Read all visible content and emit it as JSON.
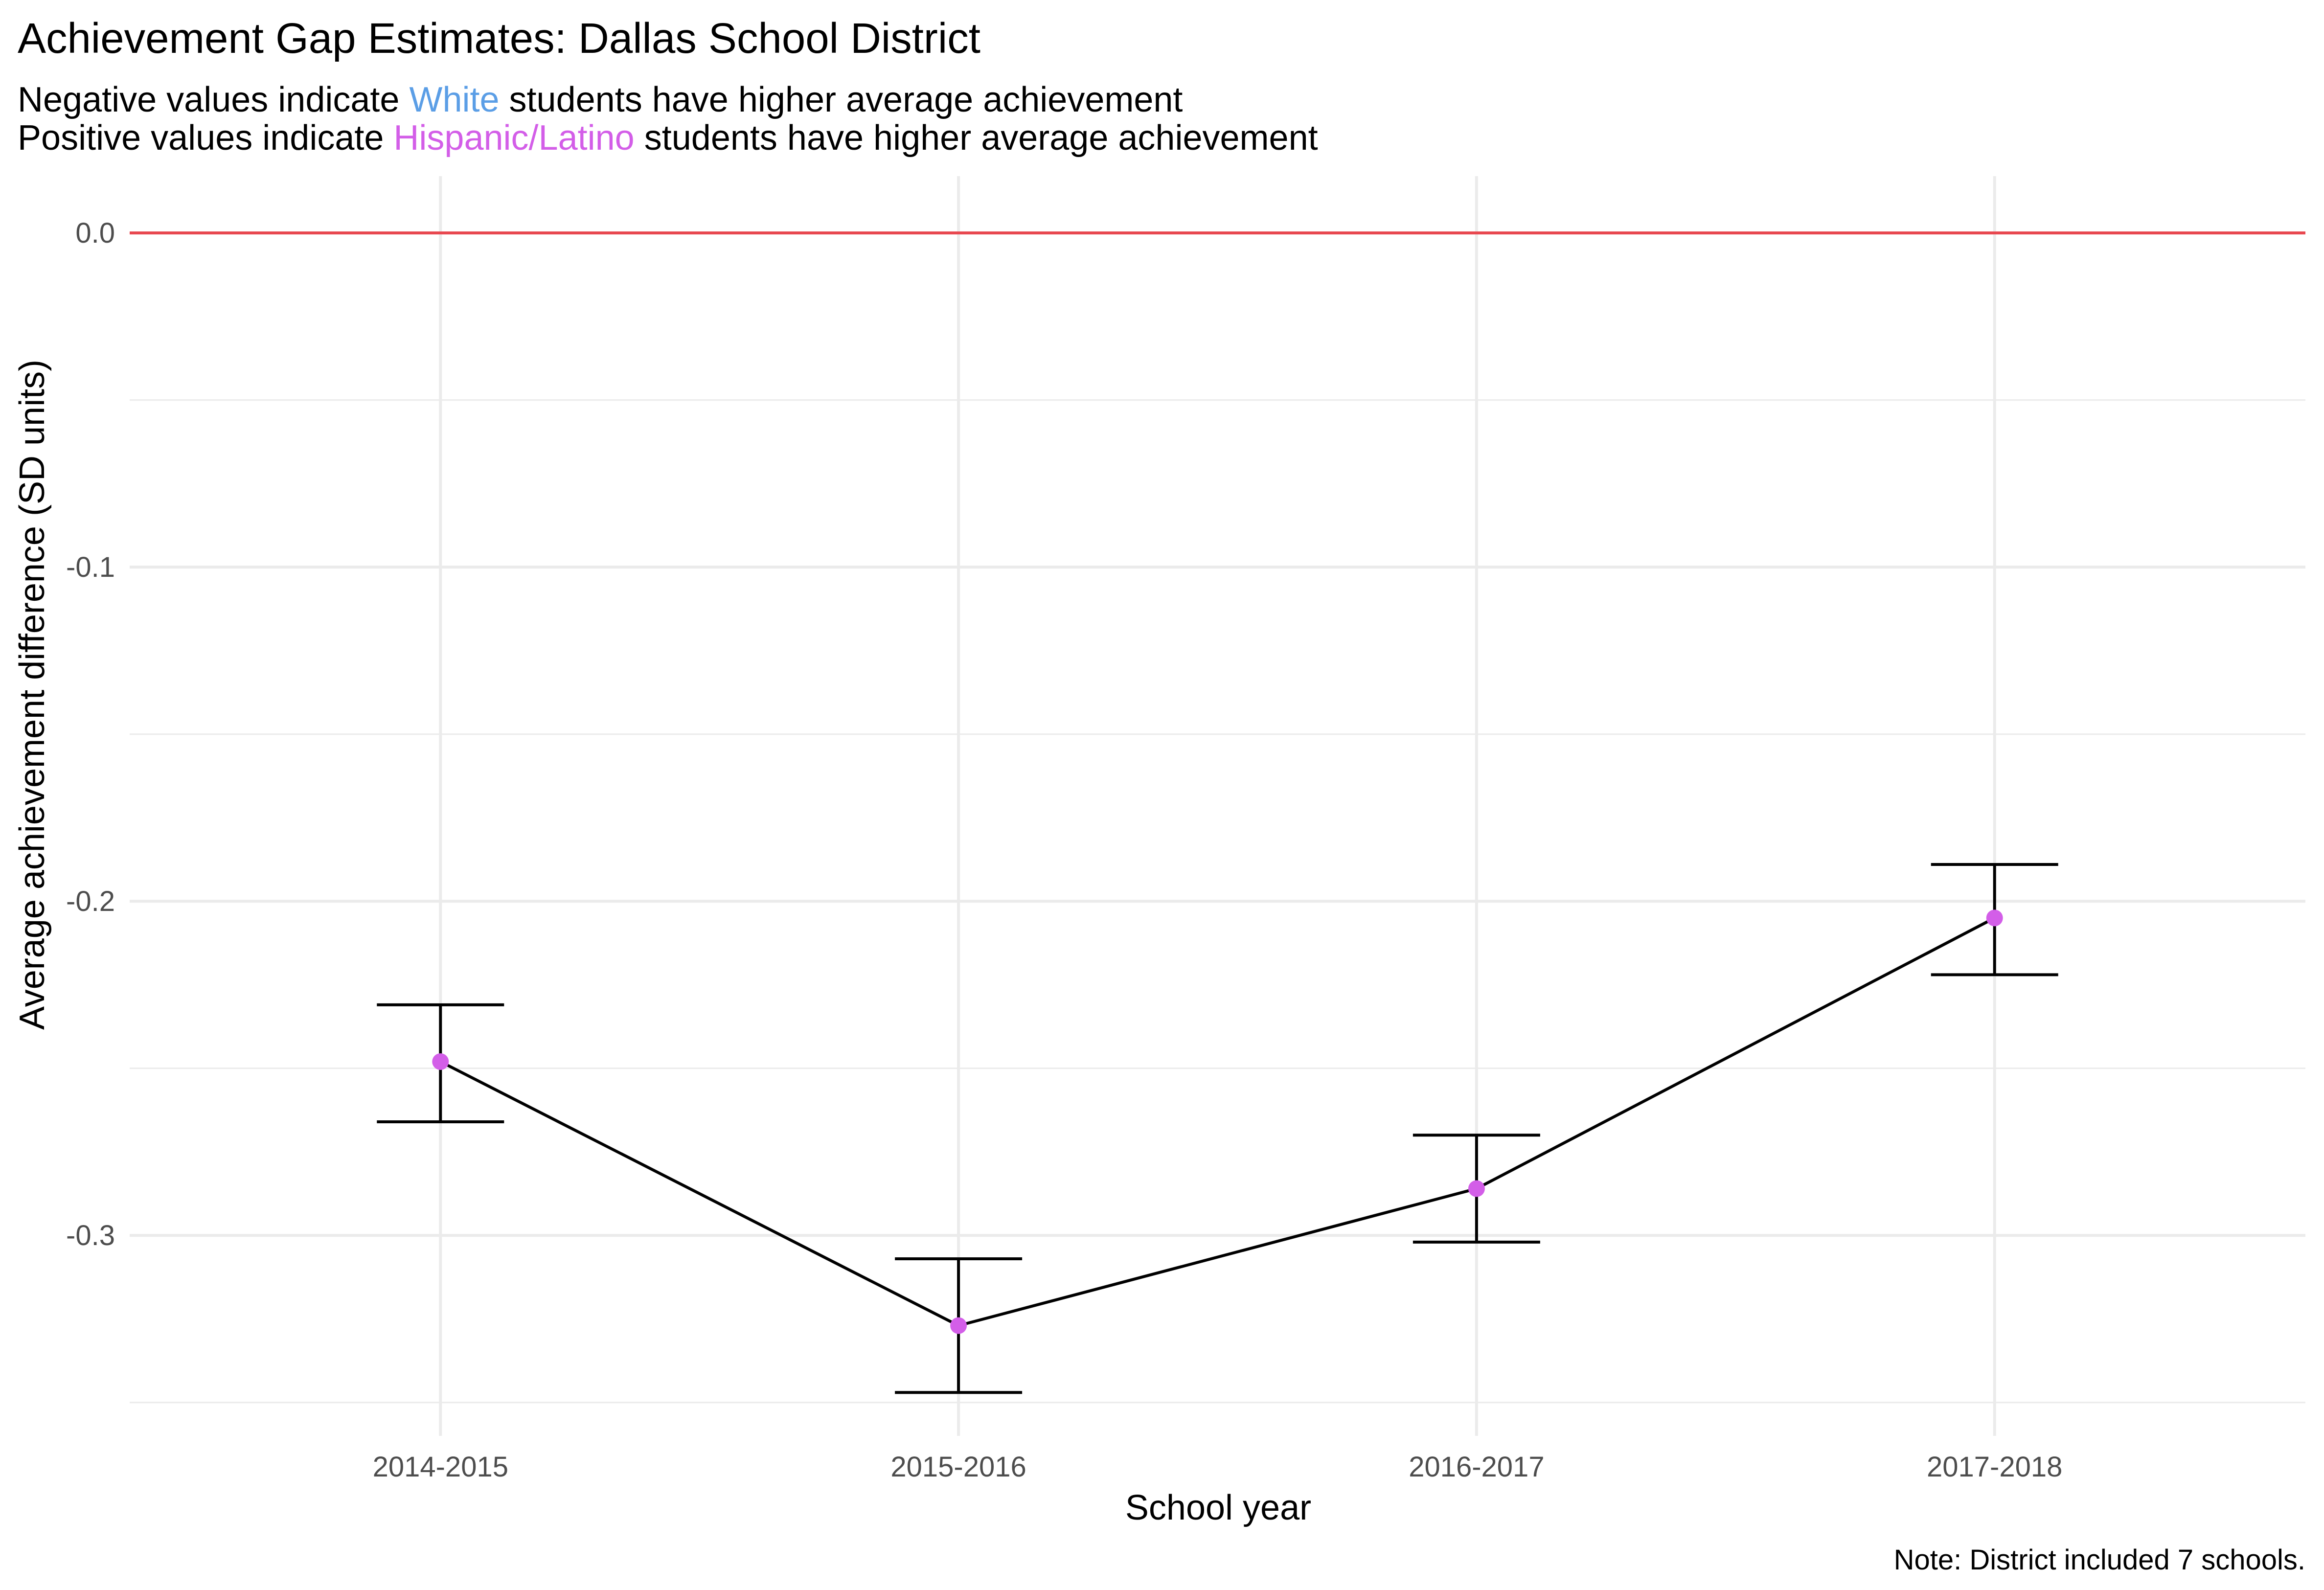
{
  "chart_data": {
    "type": "line",
    "title": "Achievement Gap Estimates: Dallas School District",
    "subtitle_lines": [
      {
        "before": "Negative values indicate ",
        "highlight": "White",
        "highlight_color": "#5b9ee6",
        "after": " students have higher average achievement"
      },
      {
        "before": "Positive values indicate ",
        "highlight": "Hispanic/Latino",
        "highlight_color": "#d35ee8",
        "after": " students have higher average achievement"
      }
    ],
    "xlabel": "School year",
    "ylabel": "Average achievement difference (SD units)",
    "caption": "Note: District included 7 schools.",
    "categories": [
      "2014-2015",
      "2015-2016",
      "2016-2017",
      "2017-2018"
    ],
    "values": [
      -0.248,
      -0.327,
      -0.286,
      -0.205
    ],
    "error_low": [
      -0.266,
      -0.347,
      -0.302,
      -0.222
    ],
    "error_high": [
      -0.231,
      -0.307,
      -0.27,
      -0.189
    ],
    "ylim": [
      -0.36,
      0.017
    ],
    "yticks": [
      0.0,
      -0.1,
      -0.2,
      -0.3
    ],
    "ytick_labels": [
      "0.0",
      "-0.1",
      "-0.2",
      "-0.3"
    ],
    "reference_line": {
      "y": 0.0,
      "color": "#e8474f"
    },
    "point_color": "#d35ee8",
    "line_color": "#000000",
    "grid": true
  }
}
